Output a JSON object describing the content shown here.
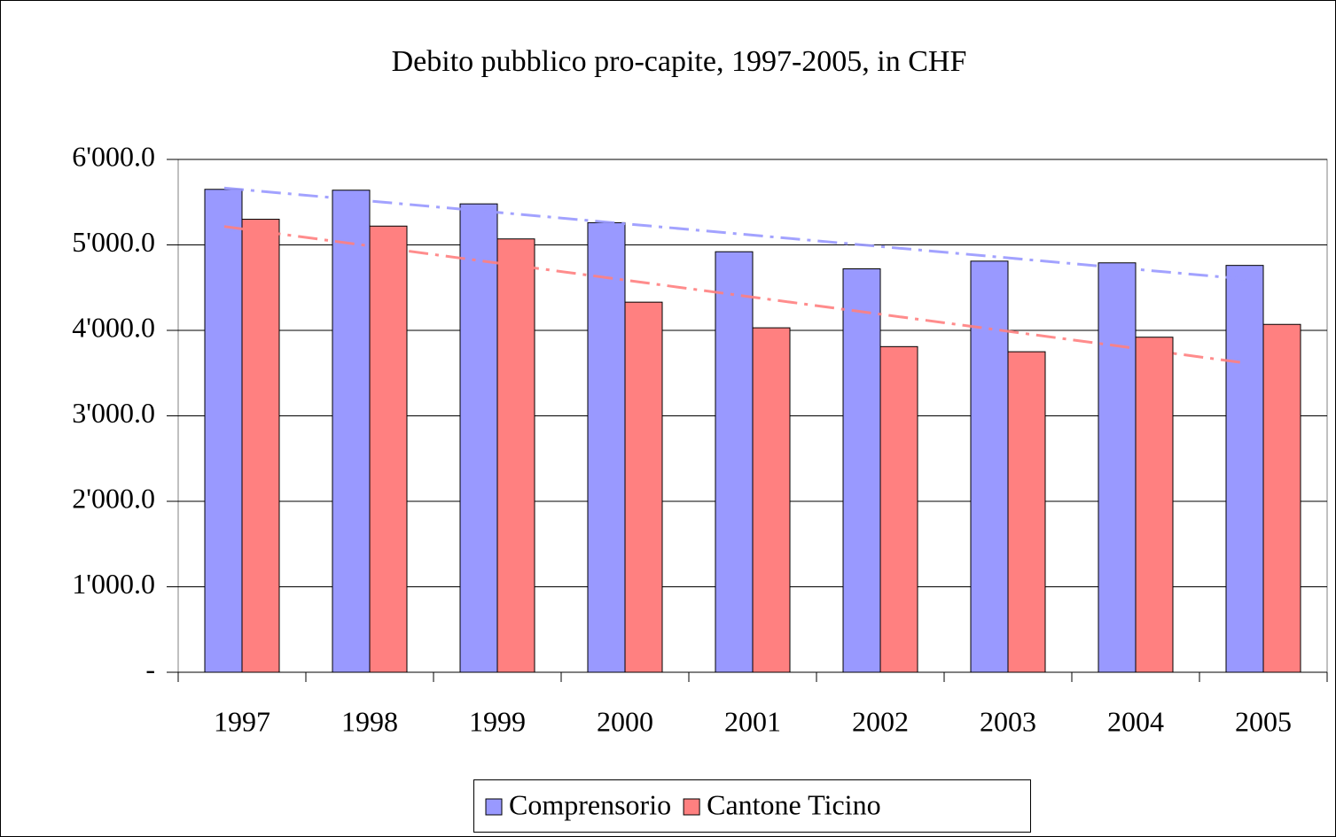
{
  "chart_data": {
    "type": "bar",
    "title": "Debito pubblico pro-capite, 1997-2005, in CHF",
    "categories": [
      "1997",
      "1998",
      "1999",
      "2000",
      "2001",
      "2002",
      "2003",
      "2004",
      "2005"
    ],
    "series": [
      {
        "name": "Comprensorio",
        "color": "#9999ff",
        "values": [
          5650,
          5640,
          5480,
          5260,
          4920,
          4720,
          4810,
          4790,
          4760
        ]
      },
      {
        "name": "Cantone Ticino",
        "color": "#ff8080",
        "values": [
          5300,
          5220,
          5070,
          4330,
          4030,
          3810,
          3750,
          3920,
          4070
        ]
      }
    ],
    "ylim": [
      0,
      6000
    ],
    "yticks": [
      {
        "value": 0,
        "label": "-"
      },
      {
        "value": 1000,
        "label": "1'000.0"
      },
      {
        "value": 2000,
        "label": "2'000.0"
      },
      {
        "value": 3000,
        "label": "3'000.0"
      },
      {
        "value": 4000,
        "label": "4'000.0"
      },
      {
        "value": 5000,
        "label": "5'000.0"
      },
      {
        "value": 6000,
        "label": "6'000.0"
      }
    ],
    "grid": true,
    "trendline": true,
    "legend": "bottom"
  }
}
